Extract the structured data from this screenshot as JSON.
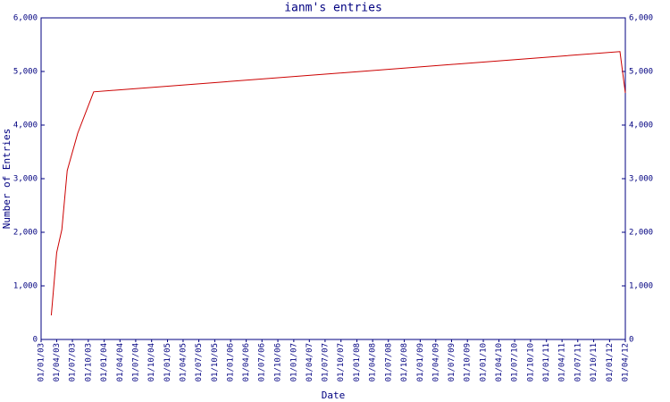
{
  "chart_data": {
    "type": "line",
    "title": "ianm's entries",
    "xlabel": "Date",
    "ylabel": "Number of Entries",
    "x": [
      "2003-03-01",
      "2003-04-01",
      "2003-05-01",
      "2003-06-01",
      "2003-08-01",
      "2003-11-01",
      "2012-03-01",
      "2012-04-01"
    ],
    "series": [
      {
        "name": "ianm",
        "color": "#cc0000",
        "values": [
          450,
          1620,
          2050,
          3150,
          3850,
          4620,
          5370,
          4600
        ]
      }
    ],
    "xlim": [
      "2003-01-01",
      "2012-04-01"
    ],
    "xticks": [
      {
        "value": "2003-01-01",
        "label": "01/01/03"
      },
      {
        "value": "2003-04-01",
        "label": "01/04/03"
      },
      {
        "value": "2003-07-01",
        "label": "01/07/03"
      },
      {
        "value": "2003-10-01",
        "label": "01/10/03"
      },
      {
        "value": "2004-01-01",
        "label": "01/01/04"
      },
      {
        "value": "2004-04-01",
        "label": "01/04/04"
      },
      {
        "value": "2004-07-01",
        "label": "01/07/04"
      },
      {
        "value": "2004-10-01",
        "label": "01/10/04"
      },
      {
        "value": "2005-01-01",
        "label": "01/01/05"
      },
      {
        "value": "2005-04-01",
        "label": "01/04/05"
      },
      {
        "value": "2005-07-01",
        "label": "01/07/05"
      },
      {
        "value": "2005-10-01",
        "label": "01/10/05"
      },
      {
        "value": "2006-01-01",
        "label": "01/01/06"
      },
      {
        "value": "2006-04-01",
        "label": "01/04/06"
      },
      {
        "value": "2006-07-01",
        "label": "01/07/06"
      },
      {
        "value": "2006-10-01",
        "label": "01/10/06"
      },
      {
        "value": "2007-01-01",
        "label": "01/01/07"
      },
      {
        "value": "2007-04-01",
        "label": "01/04/07"
      },
      {
        "value": "2007-07-01",
        "label": "01/07/07"
      },
      {
        "value": "2007-10-01",
        "label": "01/10/07"
      },
      {
        "value": "2008-01-01",
        "label": "01/01/08"
      },
      {
        "value": "2008-04-01",
        "label": "01/04/08"
      },
      {
        "value": "2008-07-01",
        "label": "01/07/08"
      },
      {
        "value": "2008-10-01",
        "label": "01/10/08"
      },
      {
        "value": "2009-01-01",
        "label": "01/01/09"
      },
      {
        "value": "2009-04-01",
        "label": "01/04/09"
      },
      {
        "value": "2009-07-01",
        "label": "01/07/09"
      },
      {
        "value": "2009-10-01",
        "label": "01/10/09"
      },
      {
        "value": "2010-01-01",
        "label": "01/01/10"
      },
      {
        "value": "2010-04-01",
        "label": "01/04/10"
      },
      {
        "value": "2010-07-01",
        "label": "01/07/10"
      },
      {
        "value": "2010-10-01",
        "label": "01/10/10"
      },
      {
        "value": "2011-01-01",
        "label": "01/01/11"
      },
      {
        "value": "2011-04-01",
        "label": "01/04/11"
      },
      {
        "value": "2011-07-01",
        "label": "01/07/11"
      },
      {
        "value": "2011-10-01",
        "label": "01/10/11"
      },
      {
        "value": "2012-01-01",
        "label": "01/01/12"
      },
      {
        "value": "2012-04-01",
        "label": "01/04/12"
      }
    ],
    "ylim": [
      0,
      6000
    ],
    "yticks": [
      0,
      {
        "value": 1000,
        "label": "1,000"
      },
      {
        "value": 2000,
        "label": "2,000"
      },
      {
        "value": 3000,
        "label": "3,000"
      },
      {
        "value": 4000,
        "label": "4,000"
      },
      {
        "value": 5000,
        "label": "5,000"
      },
      {
        "value": 6000,
        "label": "6,000"
      }
    ],
    "right_axis": true
  }
}
